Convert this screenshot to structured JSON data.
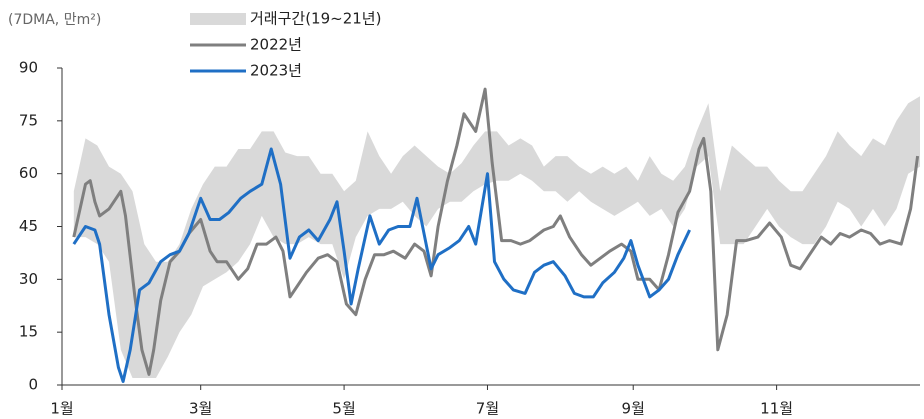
{
  "chart_data": {
    "type": "line",
    "title": "(7DMA, 만m²)",
    "xlim": [
      0,
      365
    ],
    "xticks": [
      {
        "value": 0,
        "label": "1월"
      },
      {
        "value": 59,
        "label": "3월"
      },
      {
        "value": 120,
        "label": "5월"
      },
      {
        "value": 181,
        "label": "7월"
      },
      {
        "value": 243,
        "label": "9월"
      },
      {
        "value": 304,
        "label": "11월"
      }
    ],
    "ylim": [
      0,
      90
    ],
    "yticks": [
      0,
      15,
      30,
      45,
      60,
      75,
      90
    ],
    "grid": false,
    "series": [
      {
        "name": "거래구간(19~21년)",
        "color": "#d9d9d9",
        "x": [
          5,
          10,
          15,
          20,
          25,
          30,
          35,
          40,
          45,
          50,
          55,
          60,
          65,
          70,
          75,
          80,
          85,
          90,
          95,
          100,
          105,
          110,
          115,
          120,
          125,
          130,
          135,
          140,
          145,
          150,
          155,
          160,
          165,
          170,
          175,
          180,
          185,
          190,
          195,
          200,
          205,
          210,
          215,
          220,
          225,
          230,
          235,
          240,
          245,
          250,
          255,
          260,
          265,
          270,
          275,
          280,
          285,
          290,
          295,
          300,
          305,
          310,
          315,
          320,
          325,
          330,
          335,
          340,
          345,
          350,
          355,
          360,
          365
        ],
        "high": [
          55,
          70,
          68,
          62,
          60,
          55,
          40,
          35,
          35,
          40,
          50,
          57,
          62,
          62,
          67,
          67,
          72,
          72,
          66,
          65,
          65,
          60,
          60,
          55,
          58,
          72,
          65,
          60,
          65,
          68,
          65,
          62,
          60,
          63,
          68,
          72,
          72,
          68,
          70,
          68,
          62,
          65,
          65,
          62,
          60,
          62,
          60,
          62,
          58,
          65,
          60,
          58,
          62,
          72,
          80,
          55,
          68,
          65,
          62,
          62,
          58,
          55,
          55,
          60,
          65,
          72,
          68,
          65,
          70,
          68,
          75,
          80,
          82
        ],
        "low": [
          42,
          42,
          40,
          35,
          10,
          2,
          2,
          2,
          8,
          15,
          20,
          28,
          30,
          32,
          35,
          40,
          48,
          42,
          40,
          40,
          42,
          40,
          40,
          30,
          42,
          48,
          50,
          50,
          52,
          48,
          45,
          50,
          52,
          52,
          55,
          57,
          58,
          58,
          60,
          58,
          55,
          55,
          52,
          55,
          52,
          50,
          48,
          50,
          52,
          48,
          50,
          45,
          50,
          62,
          65,
          40,
          40,
          40,
          45,
          50,
          45,
          42,
          40,
          40,
          45,
          52,
          50,
          45,
          50,
          45,
          50,
          60,
          62
        ]
      },
      {
        "name": "2022년",
        "color": "#7f7f7f",
        "x": [
          5,
          10,
          12,
          14,
          16,
          20,
          25,
          27,
          31,
          34,
          37,
          39,
          42,
          46,
          50,
          54,
          59,
          63,
          66,
          70,
          75,
          79,
          83,
          87,
          91,
          94,
          97,
          100,
          104,
          109,
          113,
          117,
          121,
          125,
          129,
          133,
          137,
          141,
          146,
          150,
          154,
          157,
          160,
          164,
          168,
          171,
          176,
          180,
          183,
          187,
          191,
          195,
          199,
          205,
          209,
          212,
          216,
          221,
          225,
          229,
          233,
          238,
          242,
          245,
          250,
          254,
          258,
          262,
          267,
          271,
          273,
          276,
          279,
          283,
          287,
          291,
          296,
          301,
          306,
          310,
          314,
          318,
          323,
          327,
          331,
          335,
          340,
          344,
          348,
          352,
          357,
          361,
          364
        ],
        "values": [
          42,
          57,
          58,
          52,
          48,
          50,
          55,
          48,
          25,
          10,
          3,
          10,
          24,
          35,
          38,
          43,
          47,
          38,
          35,
          35,
          30,
          33,
          40,
          40,
          42,
          38,
          25,
          28,
          32,
          36,
          37,
          35,
          23,
          20,
          30,
          37,
          37,
          38,
          36,
          40,
          38,
          31,
          45,
          58,
          68,
          77,
          72,
          84,
          63,
          41,
          41,
          40,
          41,
          44,
          45,
          48,
          42,
          37,
          34,
          36,
          38,
          40,
          38,
          30,
          30,
          27,
          37,
          49,
          55,
          67,
          70,
          55,
          10,
          20,
          41,
          41,
          42,
          46,
          42,
          34,
          33,
          37,
          42,
          40,
          43,
          42,
          44,
          43,
          40,
          41,
          40,
          50,
          65
        ]
      },
      {
        "name": "2023년",
        "color": "#1f6fc5",
        "x": [
          5,
          10,
          14,
          16,
          20,
          24,
          26,
          29,
          33,
          37,
          42,
          46,
          50,
          54,
          59,
          63,
          67,
          71,
          76,
          80,
          85,
          89,
          93,
          97,
          101,
          105,
          109,
          114,
          117,
          120,
          123,
          126,
          131,
          135,
          139,
          143,
          148,
          151,
          154,
          157,
          160,
          165,
          169,
          173,
          176,
          181,
          184,
          188,
          192,
          197,
          201,
          205,
          209,
          214,
          218,
          222,
          226,
          230,
          235,
          239,
          242,
          245,
          250,
          254,
          258,
          262,
          267
        ],
        "values": [
          40,
          45,
          44,
          40,
          20,
          5,
          1,
          10,
          27,
          29,
          35,
          37,
          38,
          43,
          53,
          47,
          47,
          49,
          53,
          55,
          57,
          67,
          57,
          36,
          42,
          44,
          41,
          47,
          52,
          38,
          23,
          33,
          48,
          40,
          44,
          45,
          45,
          53,
          43,
          33,
          37,
          39,
          41,
          45,
          40,
          60,
          35,
          30,
          27,
          26,
          32,
          34,
          35,
          31,
          26,
          25,
          25,
          29,
          32,
          36,
          41,
          34,
          25,
          27,
          30,
          37,
          44
        ]
      }
    ]
  }
}
